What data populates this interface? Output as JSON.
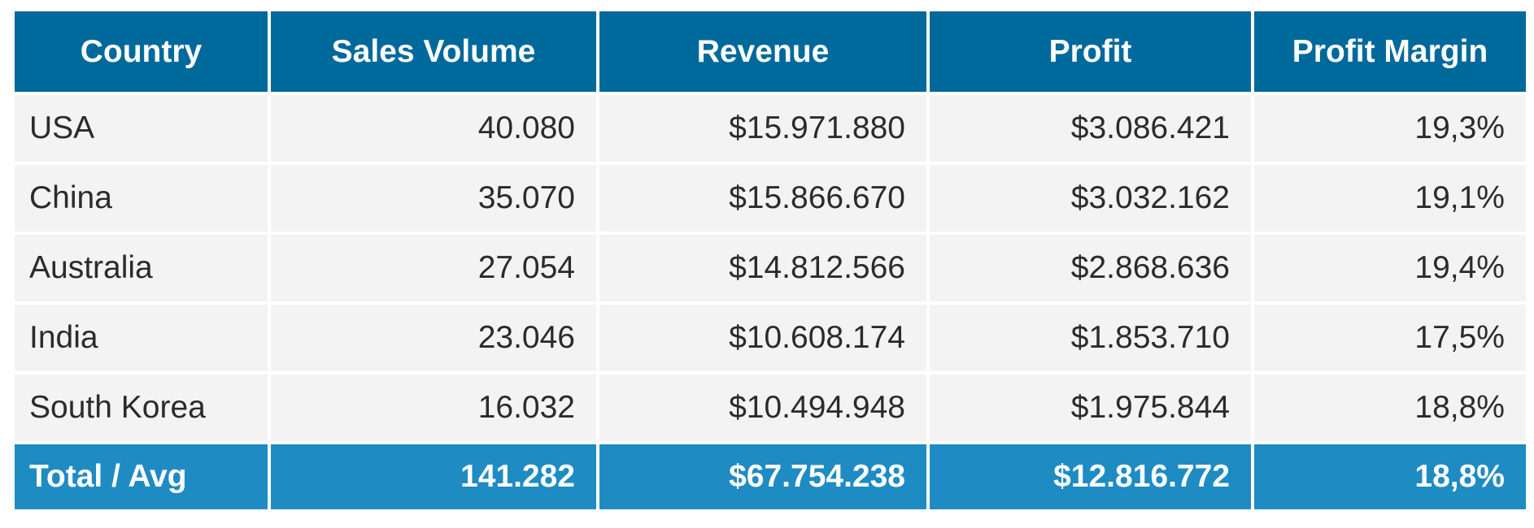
{
  "chart_data": {
    "type": "table",
    "columns": [
      "Country",
      "Sales Volume",
      "Revenue",
      "Profit",
      "Profit Margin"
    ],
    "rows": [
      [
        "USA",
        "40.080",
        "$15.971.880",
        "$3.086.421",
        "19,3%"
      ],
      [
        "China",
        "35.070",
        "$15.866.670",
        "$3.032.162",
        "19,1%"
      ],
      [
        "Australia",
        "27.054",
        "$14.812.566",
        "$2.868.636",
        "19,4%"
      ],
      [
        "India",
        "23.046",
        "$10.608.174",
        "$1.853.710",
        "17,5%"
      ],
      [
        "South Korea",
        "16.032",
        "$10.494.948",
        "$1.975.844",
        "18,8%"
      ]
    ],
    "total": [
      "Total / Avg",
      "141.282",
      "$67.754.238",
      "$12.816.772",
      "18,8%"
    ]
  },
  "colors": {
    "header_bg": "#00699b",
    "total_bg": "#1f8bc3",
    "row_bg": "#f3f3f3",
    "header_text": "#ffffff",
    "body_text": "#2b2b2b"
  }
}
